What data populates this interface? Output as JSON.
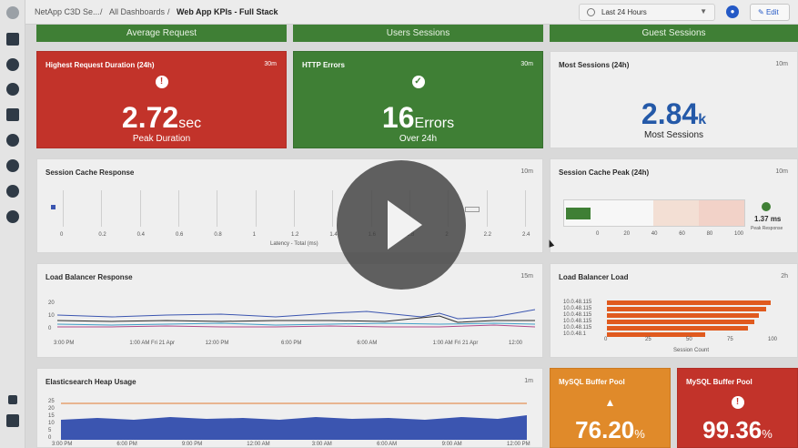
{
  "breadcrumb": {
    "root": "NetApp C3D Se...",
    "folder": "All Dashboards",
    "current": "Web App KPIs - Full Stack"
  },
  "time_range": {
    "value": "Last 24 Hours"
  },
  "toolbar": {
    "edit_label": "Edit"
  },
  "sections": [
    "Average Request",
    "Users Sessions",
    "Guest Sessions"
  ],
  "kpis": {
    "request_duration": {
      "title": "Highest Request Duration (24h)",
      "refresh": "30m",
      "value": "2.72",
      "unit": "sec",
      "caption": "Peak Duration",
      "color": "#c2332a"
    },
    "http_errors": {
      "title": "HTTP Errors",
      "refresh": "30m",
      "value": "16",
      "unit": "Errors",
      "caption": "Over 24h",
      "color": "#3f7f35"
    },
    "most_sessions": {
      "title": "Most Sessions (24h)",
      "refresh": "10m",
      "value": "2.84",
      "unit": "k",
      "caption": "Most Sessions",
      "color": "#2459a8"
    },
    "mysql_pool_1": {
      "title": "MySQL Buffer Pool",
      "value": "76.20",
      "unit": "%",
      "color": "#e08a2a"
    },
    "mysql_pool_2": {
      "title": "MySQL Buffer Pool",
      "value": "99.36",
      "unit": "%",
      "color": "#c2332a"
    }
  },
  "session_cache_response": {
    "title": "Session Cache Response",
    "refresh": "10m",
    "ticks": [
      "0",
      "0.2",
      "0.4",
      "0.6",
      "0.8",
      "1",
      "1.2",
      "1.4",
      "1.6",
      "1.8",
      "2",
      "2.2",
      "2.4"
    ],
    "xlabel": "Latency - Total (ms)"
  },
  "session_cache_peak": {
    "title": "Session Cache Peak (24h)",
    "refresh": "10m",
    "ticks": [
      "0",
      "20",
      "40",
      "60",
      "80",
      "100"
    ],
    "value": "1.37",
    "value_unit": "ms",
    "caption": "Peak Response"
  },
  "load_balancer_response": {
    "title": "Load Balancer Response",
    "refresh": "15m",
    "y_ticks": [
      "20",
      "10",
      "0"
    ],
    "x_ticks": [
      "3:00 PM",
      "1:00 AM Fri 21 Apr",
      "12:00 PM",
      "6:00 PM",
      "6:00 AM",
      "1:00 AM Fri 21 Apr",
      "12:00"
    ]
  },
  "load_balancer_load": {
    "title": "Load Balancer Load",
    "refresh": "2h",
    "xlabel": "Session Count",
    "x_ticks": [
      "0",
      "25",
      "50",
      "75",
      "100"
    ],
    "categories": [
      "10.0.48.115",
      "10.0.48.115",
      "10.0.48.115",
      "10.0.48.115",
      "10.0.48.115",
      "10.0.48.1"
    ],
    "values": [
      100,
      97,
      93,
      90,
      86,
      60
    ],
    "color": "#e05a1e"
  },
  "elasticsearch_heap": {
    "title": "Elasticsearch Heap Usage",
    "refresh": "1m",
    "y_ticks": [
      "25",
      "20",
      "15",
      "10",
      "5",
      "0"
    ],
    "x_ticks": [
      "3:00 PM",
      "6:00 PM",
      "9:00 PM",
      "12:00 AM",
      "3:00 AM",
      "6:00 AM",
      "9:00 AM",
      "12:00 PM"
    ],
    "fill_color": "#3b55b0",
    "line_color": "#e07a30"
  }
}
